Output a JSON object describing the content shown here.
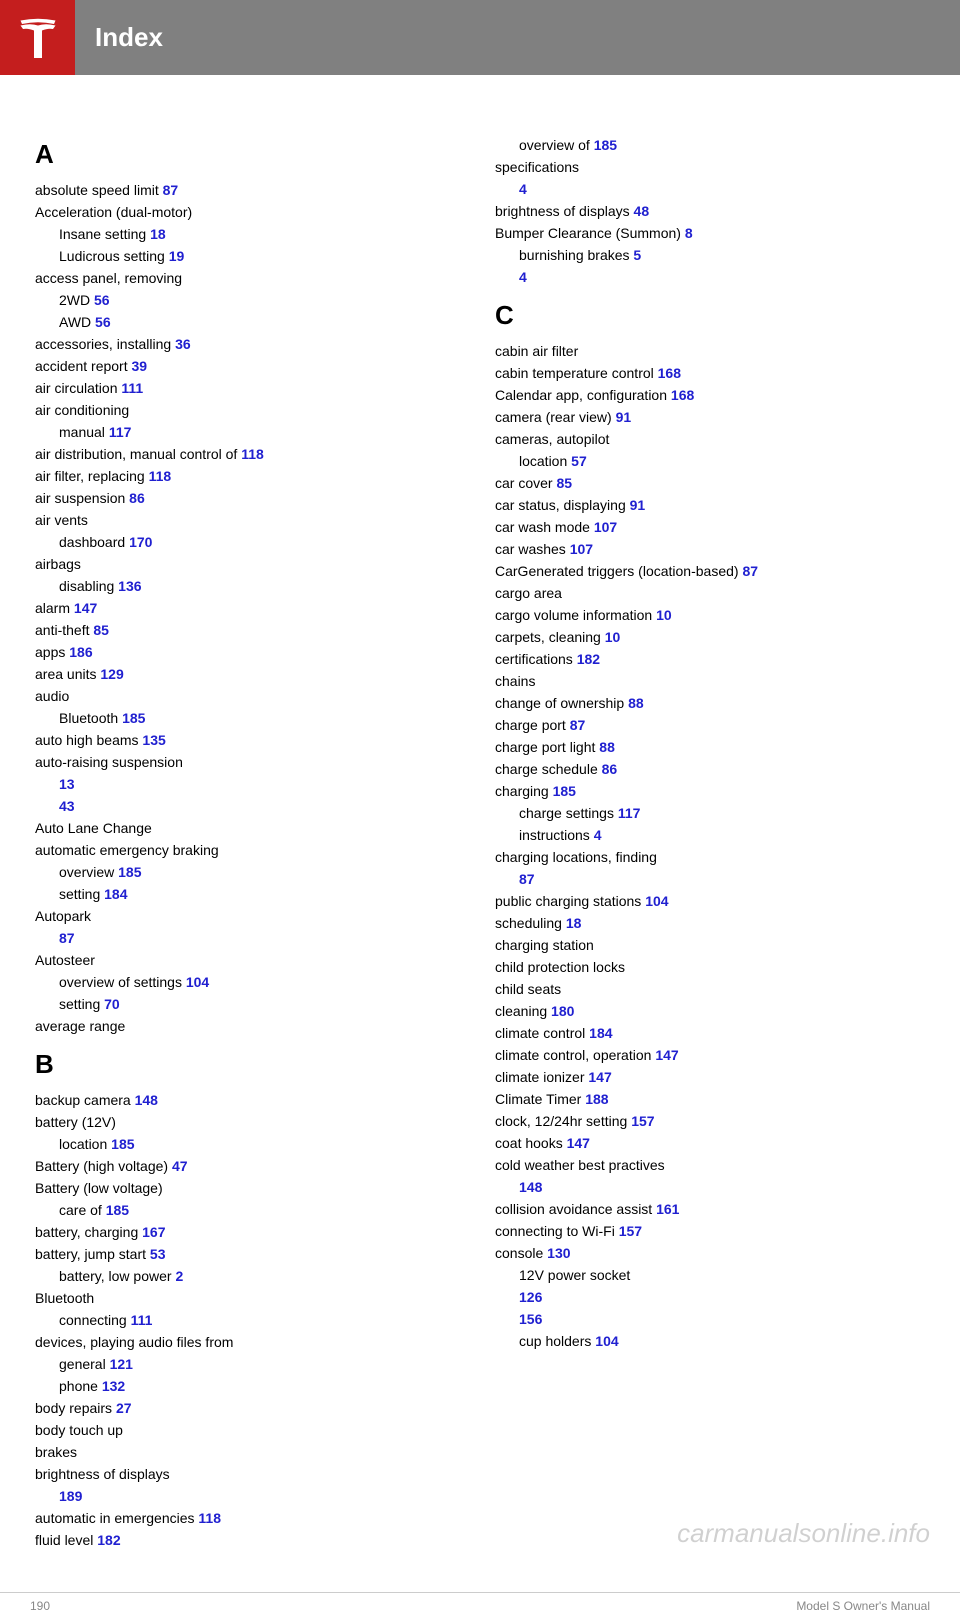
{
  "header": {
    "title": "Index"
  },
  "footer": {
    "page_number": "190",
    "document_title": "Model S Owner's Manual"
  },
  "watermark": "carmanualsonline.info",
  "columns": {
    "left": {
      "sections": [
        {
          "letter": "A",
          "entries": [
            {
              "text": "absolute speed limit ",
              "page": "87",
              "sub": false
            },
            {
              "text_before": "Acceleration (dual-motor) ",
              "page": "",
              "sub": false
            },
            {
              "sub": true,
              "text_before": "Insane setting ",
              "page": "18"
            },
            {
              "sub": true,
              "text_before": "Ludicrous setting ",
              "page": "19"
            },
            {
              "text_before": "access panel, removing ",
              "page": "",
              "sub": false
            },
            {
              "sub": true,
              "text_before": "2WD ",
              "page": "56"
            },
            {
              "sub": true,
              "text_before": "AWD ",
              "page": "56"
            },
            {
              "text_before": "accessories, installing ",
              "page": "36",
              "sub": false
            },
            {
              "text_before": "accident report ",
              "page": "39",
              "sub": false
            },
            {
              "text_before": "air circulation ",
              "page": "111",
              "sub": false
            },
            {
              "text_before": "air conditioning ",
              "page": "",
              "sub": false
            },
            {
              "sub": true,
              "text_before": "manual ",
              "page": "117"
            },
            {
              "text_before": "air distribution, manual control of ",
              "page": "118",
              "sub": false
            },
            {
              "text_before": "air filter, replacing ",
              "page": "118",
              "sub": false
            },
            {
              "text_before": "air suspension ",
              "page": "86",
              "sub": false
            },
            {
              "text_before": "air vents ",
              "page": "",
              "sub": false
            },
            {
              "sub": true,
              "text_before": "dashboard ",
              "page": "170"
            },
            {
              "text_before": "airbags ",
              "page": "",
              "sub": false
            },
            {
              "sub": true,
              "text_before": "disabling ",
              "page": "136"
            },
            {
              "text_before": "alarm ",
              "page": "147",
              "sub": false
            },
            {
              "text_before": "anti-theft ",
              "page": "85",
              "sub": false
            },
            {
              "text_before": "apps ",
              "page": "186",
              "sub": false
            },
            {
              "text_before": "area units ",
              "page": "129",
              "sub": false
            },
            {
              "text_before": "audio ",
              "page": "",
              "sub": false
            },
            {
              "sub": true,
              "text_before": "Bluetooth ",
              "page": "185"
            },
            {
              "text_before": "auto high beams ",
              "page": "135",
              "sub": false
            },
            {
              "text_before": "auto-raising suspension ",
              "page": "",
              "sub": false
            },
            {
              "sub": true,
              "text_before": "13",
              "page": ""
            },
            {
              "sub": true,
              "text_before": "43",
              "page": ""
            },
            {
              "text_before": "Auto Lane Change ",
              "page": "",
              "sub": false
            },
            {
              "text_before": "automatic emergency braking ",
              "page": "",
              "sub": false
            },
            {
              "sub": true,
              "text_before": "overview ",
              "page": "185"
            },
            {
              "sub": true,
              "text_before": "setting ",
              "page": "184"
            },
            {
              "text_before": "Autopark ",
              "page": "",
              "sub": false
            },
            {
              "sub": true,
              "text_before": "87",
              "page": ""
            },
            {
              "text_before": "Autosteer ",
              "page": "",
              "sub": false
            },
            {
              "sub": true,
              "text_before": "overview of settings ",
              "page": "104"
            },
            {
              "sub": true,
              "text_before": "setting ",
              "page": "70"
            },
            {
              "text_before": "average range ",
              "page": "",
              "sub": false
            }
          ]
        },
        {
          "letter": "B",
          "entries": [
            {
              "text_before": "backup camera ",
              "page": "148",
              "sub": false
            },
            {
              "text_before": "battery (12V) ",
              "page": "",
              "sub": false
            },
            {
              "sub": true,
              "text_before": "location ",
              "page": "185"
            },
            {
              "text_before": "Battery (high voltage) ",
              "page": "47",
              "sub": false
            },
            {
              "text_before": "Battery (low voltage) ",
              "page": "",
              "sub": false
            },
            {
              "sub": true,
              "text_before": "care of ",
              "page": "185"
            },
            {
              "text_before": "battery, charging ",
              "page": "167",
              "sub": false
            },
            {
              "text_before": "battery, jump start ",
              "page": "53",
              "sub": false
            },
            {
              "text_before": "battery, low power ",
              "page": "2",
              "sub": true
            },
            {
              "text_before": "Bluetooth ",
              "page": "",
              "sub": false
            },
            {
              "sub": true,
              "text_before": "connecting ",
              "page": "111"
            },
            {
              "text_before": "devices, playing audio files from ",
              "page": "",
              "sub": false
            },
            {
              "sub": true,
              "text_before": "general ",
              "page": "121"
            },
            {
              "sub": true,
              "text_before": "phone ",
              "page": "132"
            },
            {
              "text_before": "body repairs ",
              "page": "27",
              "sub": false
            },
            {
              "text_before": "body touch up ",
              "page": "",
              "sub": false
            },
            {
              "text_before": "brakes ",
              "page": "",
              "sub": false
            },
            {
              "text_before": "brightness of displays ",
              "page": "",
              "sub": false
            },
            {
              "sub": true,
              "text_before": "189",
              "page": ""
            },
            {
              "text_before": "automatic in emergencies ",
              "page": "118",
              "sub": false
            },
            {
              "text_before": "fluid level ",
              "page": "182",
              "sub": false
            }
          ]
        }
      ]
    },
    "right": {
      "sections": [
        {
          "letter": "",
          "entries": [
            {
              "sub": true,
              "text_before": "overview of ",
              "page": "185"
            },
            {
              "text_before": "specifications ",
              "page": "",
              "sub": false
            },
            {
              "sub": true,
              "text_before": "4",
              "page": ""
            },
            {
              "text_before": "brightness of displays ",
              "page": "48",
              "sub": false
            },
            {
              "text_before": "Bumper Clearance (Summon) ",
              "page": "8",
              "sub": false
            },
            {
              "text_before": "burnishing brakes ",
              "page": "5",
              "sub": true
            },
            {
              "sub": true,
              "text_before": "4",
              "page": ""
            }
          ]
        },
        {
          "letter": "C",
          "entries": [
            {
              "text_before": "cabin air filter",
              "page": "",
              "sub": false
            },
            {
              "text_before": "cabin temperature control ",
              "page": "168",
              "sub": false
            },
            {
              "text_before": "Calendar app, configuration ",
              "page": "168",
              "sub": false
            },
            {
              "text_before": "camera (rear view) ",
              "page": "91",
              "sub": false
            },
            {
              "text_before": "cameras, autopilot ",
              "page": "",
              "sub": false
            },
            {
              "sub": true,
              "text_before": "location ",
              "page": "57"
            },
            {
              "text_before": "car cover ",
              "page": "85",
              "sub": false
            },
            {
              "text_before": "car status, displaying ",
              "page": "91",
              "sub": false
            },
            {
              "text_before": "car wash mode ",
              "page": "107",
              "sub": false
            },
            {
              "text_before": "car washes ",
              "page": "107",
              "sub": false
            },
            {
              "text_before": "CarGenerated triggers (location-based) ",
              "page": "87",
              "sub": false
            },
            {
              "text_before": "cargo area ",
              "page": "",
              "sub": false
            },
            {
              "text_before": "cargo volume information ",
              "page": "10",
              "sub": false
            },
            {
              "text_before": "carpets, cleaning ",
              "page": "10",
              "sub": false
            },
            {
              "text_before": "certifications ",
              "page": "182",
              "sub": false
            },
            {
              "text_before": "chains ",
              "page": "",
              "sub": false
            },
            {
              "text_before": "change of ownership ",
              "page": "88",
              "sub": false
            },
            {
              "text_before": "charge port ",
              "page": "87",
              "sub": false
            },
            {
              "text_before": "charge port light ",
              "page": "88",
              "sub": false
            },
            {
              "text_before": "charge schedule ",
              "page": "86",
              "sub": false
            },
            {
              "text_before": "charging ",
              "page": "185",
              "sub": false
            },
            {
              "sub": true,
              "text_before": "charge settings ",
              "page": "117"
            },
            {
              "sub": true,
              "text_before": "instructions ",
              "page": "4"
            },
            {
              "text_before": "charging locations, finding ",
              "page": "",
              "sub": false
            },
            {
              "sub": true,
              "text_before": "87",
              "page": ""
            },
            {
              "text_before": "public charging stations ",
              "page": "104",
              "sub": false
            },
            {
              "text_before": "scheduling ",
              "page": "18",
              "sub": false
            },
            {
              "text_before": "charging station ",
              "page": "",
              "sub": false
            },
            {
              "text_before": "child protection locks ",
              "page": "",
              "sub": false
            },
            {
              "text_before": "child seats ",
              "page": "",
              "sub": false
            },
            {
              "text_before": "cleaning ",
              "page": "180",
              "sub": false
            },
            {
              "text_before": "climate control ",
              "page": "184",
              "sub": false
            },
            {
              "text_before": "climate control, operation ",
              "page": "147",
              "sub": false
            },
            {
              "text_before": "climate ionizer ",
              "page": "147",
              "sub": false
            },
            {
              "text_before": "Climate Timer ",
              "page": "188",
              "sub": false
            },
            {
              "text_before": "clock, 12/24hr setting ",
              "page": "157",
              "sub": false
            },
            {
              "text_before": "coat hooks ",
              "page": "147",
              "sub": false
            },
            {
              "text_before": "cold weather best practives ",
              "page": "",
              "sub": false
            },
            {
              "sub": true,
              "text_before": "148",
              "page": ""
            },
            {
              "text_before": "collision avoidance assist ",
              "page": "161",
              "sub": false
            },
            {
              "text_before": "connecting to Wi-Fi ",
              "page": "157",
              "sub": false
            },
            {
              "text_before": "console ",
              "page": "130",
              "sub": false
            },
            {
              "sub": true,
              "text_before": "12V power socket ",
              "page": ""
            },
            {
              "sub": true,
              "text_before": "126",
              "page": ""
            },
            {
              "sub": true,
              "text_before": "156",
              "page": ""
            },
            {
              "sub": true,
              "text_before": "cup holders ",
              "page": "104"
            }
          ]
        }
      ]
    }
  }
}
